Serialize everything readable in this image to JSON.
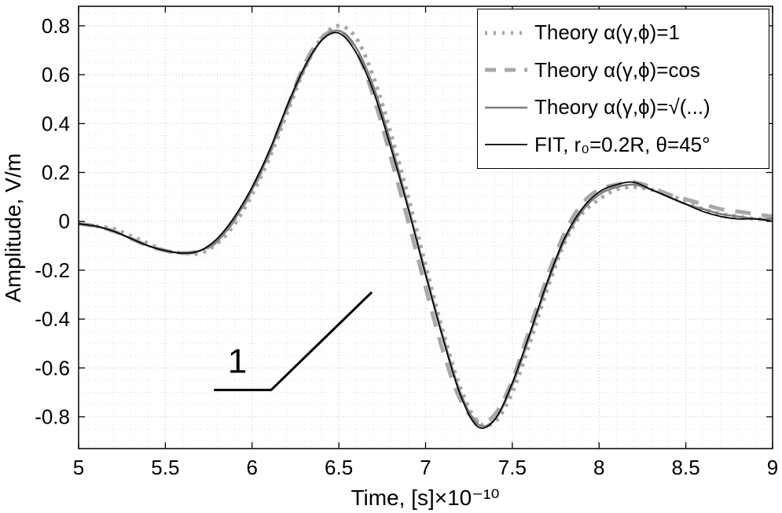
{
  "chart_data": {
    "type": "line",
    "title": "",
    "xlabel": "Time, [s]×10⁻¹⁰",
    "ylabel": "Amplitude, V/m",
    "xlim": [
      5,
      9
    ],
    "ylim": [
      -0.93,
      0.88
    ],
    "xticks": [
      5,
      5.5,
      6,
      6.5,
      7,
      7.5,
      8,
      8.5,
      9
    ],
    "xtick_labels": [
      "5",
      "5.5",
      "6",
      "6.5",
      "7",
      "7.5",
      "8",
      "8.5",
      "9"
    ],
    "yticks": [
      -0.8,
      -0.6,
      -0.4,
      -0.2,
      0,
      0.2,
      0.4,
      0.6,
      0.8
    ],
    "ytick_labels": [
      "-0.8",
      "-0.6",
      "-0.4",
      "-0.2",
      "0",
      "0.2",
      "0.4",
      "0.6",
      "0.8"
    ],
    "minor_x_step": 0.1,
    "minor_y_step": 0.05,
    "grid": true,
    "grid_minor_color": "#e3e3e3",
    "grid_major_color": "#c9c9c9",
    "axis_color": "#000000",
    "legend_position": "top-right",
    "x": [
      5,
      5.1,
      5.2,
      5.3,
      5.4,
      5.5,
      5.6,
      5.7,
      5.8,
      5.9,
      6,
      6.1,
      6.2,
      6.3,
      6.4,
      6.5,
      6.6,
      6.7,
      6.8,
      6.9,
      7,
      7.1,
      7.2,
      7.3,
      7.4,
      7.5,
      7.6,
      7.7,
      7.8,
      7.9,
      8,
      8.1,
      8.2,
      8.3,
      8.4,
      8.5,
      8.6,
      8.7,
      8.8,
      8.9,
      9
    ],
    "series": [
      {
        "key": "theory-1",
        "name": "Theory α(γ,ϕ)=1",
        "style": "dotted",
        "color": "#a8a8a8",
        "width": 5,
        "values": [
          -0.01,
          -0.02,
          -0.03,
          -0.06,
          -0.09,
          -0.12,
          -0.13,
          -0.13,
          -0.09,
          -0.01,
          0.11,
          0.26,
          0.44,
          0.62,
          0.75,
          0.8,
          0.75,
          0.59,
          0.36,
          0.1,
          -0.18,
          -0.45,
          -0.68,
          -0.82,
          -0.82,
          -0.7,
          -0.5,
          -0.28,
          -0.09,
          0.03,
          0.09,
          0.13,
          0.14,
          0.13,
          0.11,
          0.08,
          0.05,
          0.03,
          0.02,
          0.01,
          0.01
        ]
      },
      {
        "key": "theory-cos",
        "name": "Theory α(γ,ϕ)=cos",
        "style": "dashed",
        "color": "#a8a8a8",
        "width": 5,
        "values": [
          -0.01,
          -0.02,
          -0.04,
          -0.07,
          -0.1,
          -0.12,
          -0.13,
          -0.12,
          -0.08,
          0.01,
          0.13,
          0.28,
          0.46,
          0.64,
          0.75,
          0.78,
          0.7,
          0.51,
          0.26,
          0.0,
          -0.27,
          -0.53,
          -0.73,
          -0.82,
          -0.79,
          -0.65,
          -0.44,
          -0.23,
          -0.05,
          0.07,
          0.13,
          0.15,
          0.16,
          0.14,
          0.11,
          0.09,
          0.07,
          0.05,
          0.04,
          0.03,
          0.02
        ]
      },
      {
        "key": "theory-sqrt",
        "name": "Theory α(γ,ϕ)=√(...)",
        "style": "solid",
        "color": "#7d7d7d",
        "width": 2.6,
        "values": [
          -0.01,
          -0.02,
          -0.04,
          -0.07,
          -0.1,
          -0.12,
          -0.13,
          -0.12,
          -0.08,
          0.01,
          0.13,
          0.28,
          0.46,
          0.62,
          0.74,
          0.78,
          0.71,
          0.55,
          0.32,
          0.06,
          -0.21,
          -0.47,
          -0.7,
          -0.83,
          -0.81,
          -0.67,
          -0.47,
          -0.26,
          -0.08,
          0.04,
          0.11,
          0.14,
          0.15,
          0.13,
          0.1,
          0.07,
          0.05,
          0.03,
          0.02,
          0.01,
          0.01
        ]
      },
      {
        "key": "fit",
        "name": "FIT, r₀=0.2R, θ=45°",
        "style": "solid",
        "color": "#000000",
        "width": 1.7,
        "values": [
          -0.01,
          -0.02,
          -0.04,
          -0.07,
          -0.1,
          -0.12,
          -0.13,
          -0.12,
          -0.07,
          0.02,
          0.14,
          0.29,
          0.47,
          0.63,
          0.74,
          0.77,
          0.69,
          0.53,
          0.3,
          0.05,
          -0.22,
          -0.48,
          -0.71,
          -0.84,
          -0.81,
          -0.66,
          -0.46,
          -0.25,
          -0.07,
          0.05,
          0.12,
          0.15,
          0.16,
          0.13,
          0.1,
          0.07,
          0.04,
          0.02,
          0.01,
          0.01,
          0.0
        ]
      }
    ],
    "annotation": {
      "label": "1",
      "polyline": [
        [
          5.78,
          -0.69
        ],
        [
          6.11,
          -0.69
        ],
        [
          6.69,
          -0.29
        ]
      ],
      "label_pos": [
        5.915,
        -0.62
      ],
      "color": "#000000"
    }
  }
}
